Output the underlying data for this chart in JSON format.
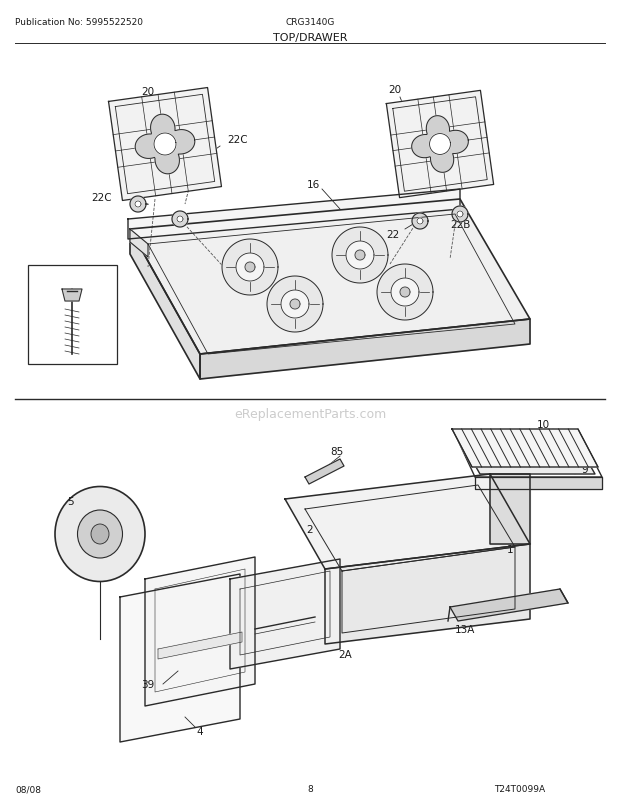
{
  "title": "TOP/DRAWER",
  "pub_no": "Publication No: 5995522520",
  "model": "CRG3140G",
  "date": "08/08",
  "page": "8",
  "watermark": "eReplacementParts.com",
  "diagram_id": "T24T0099A",
  "bg_color": "#ffffff",
  "line_color": "#2a2a2a",
  "text_color": "#1a1a1a",
  "gray_fill": "#e8e8e8",
  "dark_gray": "#c0c0c0"
}
